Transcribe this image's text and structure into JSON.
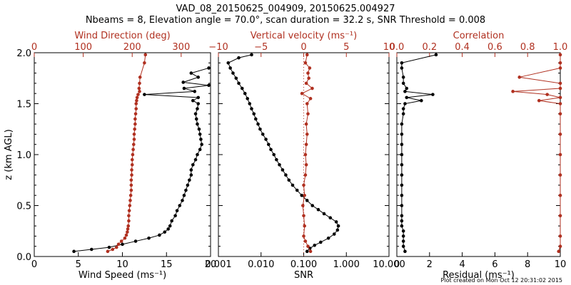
{
  "title_line1": "VAD_08_20150625_004909, 20150625.004927",
  "title_line2": "Nbeams = 8, Elevation angle = 70.0°, scan duration = 32.2 s, SNR Threshold = 0.008",
  "footer": "Plot created on Mon Oct 12 20:31:02 2015",
  "colors": {
    "black": "#000000",
    "red": "#b03020"
  },
  "chart_data": [
    {
      "type": "line",
      "ylabel": "z (km AGL)",
      "ylim": [
        0,
        2.0
      ],
      "yticks": [
        "0.0",
        "0.5",
        "1.0",
        "1.5",
        "2.0"
      ],
      "bottom_axis": {
        "label": "Wind Speed (ms⁻¹)",
        "range": [
          0,
          20
        ],
        "ticks": [
          "0",
          "5",
          "10",
          "15",
          "20"
        ]
      },
      "top_axis": {
        "label": "Wind Direction (deg)",
        "range": [
          0,
          360
        ],
        "ticks": [
          "0",
          "100",
          "200",
          "300"
        ]
      },
      "series": [
        {
          "axis": "bottom",
          "color": "#000000",
          "y": [
            0.05,
            0.07,
            0.09,
            0.12,
            0.15,
            0.18,
            0.21,
            0.24,
            0.27,
            0.3,
            0.35,
            0.4,
            0.45,
            0.5,
            0.55,
            0.6,
            0.65,
            0.7,
            0.75,
            0.8,
            0.85,
            0.9,
            0.95,
            1.0,
            1.05,
            1.1,
            1.15,
            1.2,
            1.25,
            1.3,
            1.35,
            1.4,
            1.45,
            1.5,
            1.53,
            1.56,
            1.59,
            1.62,
            1.65,
            1.68,
            1.71,
            1.76,
            1.8,
            1.85
          ],
          "x": [
            4.5,
            6.5,
            8.5,
            10.0,
            11.5,
            13.0,
            14.2,
            14.8,
            15.2,
            15.4,
            15.6,
            16.0,
            16.2,
            16.5,
            16.8,
            17.0,
            17.2,
            17.4,
            17.6,
            17.8,
            17.8,
            18.0,
            18.3,
            18.5,
            18.8,
            19.0,
            18.9,
            18.8,
            18.7,
            18.5,
            18.4,
            18.3,
            18.5,
            18.6,
            18.0,
            18.6,
            12.5,
            18.2,
            17.0,
            19.8,
            16.9,
            18.6,
            17.8,
            19.8
          ]
        },
        {
          "axis": "top",
          "color": "#b03020",
          "y": [
            0.05,
            0.07,
            0.09,
            0.12,
            0.15,
            0.18,
            0.21,
            0.24,
            0.27,
            0.3,
            0.35,
            0.4,
            0.45,
            0.5,
            0.55,
            0.6,
            0.65,
            0.7,
            0.75,
            0.8,
            0.85,
            0.9,
            0.95,
            1.0,
            1.05,
            1.1,
            1.15,
            1.2,
            1.25,
            1.3,
            1.35,
            1.4,
            1.45,
            1.5,
            1.53,
            1.56,
            1.59,
            1.62,
            1.65,
            1.7,
            1.76,
            1.9,
            1.98
          ],
          "x": [
            150,
            160,
            168,
            172,
            178,
            185,
            188,
            190,
            191,
            192,
            193,
            193,
            194,
            195,
            196,
            197,
            198,
            198,
            198,
            199,
            199,
            200,
            200,
            201,
            202,
            203,
            204,
            204,
            205,
            206,
            206,
            207,
            208,
            208,
            209,
            210,
            212,
            215,
            214,
            215,
            216,
            225,
            227
          ]
        }
      ]
    },
    {
      "type": "line",
      "xlabel": "SNR",
      "ylim": [
        0,
        2.0
      ],
      "bottom_axis": {
        "label": "SNR",
        "scale": "log",
        "range": [
          0.001,
          10
        ],
        "ticks": [
          "0.001",
          "0.010",
          "0.100",
          "1.000",
          "10.000"
        ]
      },
      "top_axis": {
        "label": "Vertical velocity (ms⁻¹)",
        "range": [
          -10,
          10
        ],
        "ticks": [
          "−10",
          "−5",
          "0",
          "5",
          "10"
        ]
      },
      "series": [
        {
          "axis": "bottom",
          "color": "#000000",
          "y": [
            0.05,
            0.08,
            0.11,
            0.14,
            0.18,
            0.22,
            0.26,
            0.3,
            0.34,
            0.38,
            0.42,
            0.46,
            0.5,
            0.55,
            0.6,
            0.65,
            0.7,
            0.75,
            0.8,
            0.85,
            0.9,
            0.95,
            1.0,
            1.05,
            1.1,
            1.15,
            1.2,
            1.25,
            1.3,
            1.35,
            1.4,
            1.45,
            1.5,
            1.55,
            1.6,
            1.65,
            1.7,
            1.75,
            1.8,
            1.85,
            1.9,
            1.95,
            1.98
          ],
          "x": [
            0.12,
            0.14,
            0.18,
            0.25,
            0.38,
            0.52,
            0.62,
            0.65,
            0.58,
            0.42,
            0.3,
            0.22,
            0.16,
            0.12,
            0.09,
            0.07,
            0.055,
            0.045,
            0.038,
            0.032,
            0.027,
            0.023,
            0.02,
            0.017,
            0.015,
            0.013,
            0.011,
            0.0095,
            0.0085,
            0.0075,
            0.0068,
            0.006,
            0.0054,
            0.0048,
            0.0042,
            0.0036,
            0.003,
            0.0026,
            0.0022,
            0.0019,
            0.0017,
            0.003,
            0.006
          ]
        },
        {
          "axis": "top",
          "color": "#b03020",
          "y": [
            0.05,
            0.1,
            0.15,
            0.2,
            0.3,
            0.4,
            0.5,
            0.6,
            0.7,
            0.8,
            0.9,
            1.0,
            1.1,
            1.2,
            1.3,
            1.4,
            1.5,
            1.55,
            1.6,
            1.65,
            1.7,
            1.75,
            1.8,
            1.85,
            1.9,
            1.98
          ],
          "x": [
            0.8,
            0.5,
            0.2,
            0.0,
            0.1,
            0.0,
            -0.1,
            0.1,
            0.0,
            0.2,
            0.3,
            0.2,
            0.3,
            0.4,
            0.3,
            0.5,
            0.4,
            0.8,
            -0.2,
            1.0,
            0.3,
            0.6,
            0.5,
            0.7,
            0.2,
            0.4
          ]
        }
      ]
    },
    {
      "type": "line",
      "ylim": [
        0,
        2.0
      ],
      "bottom_axis": {
        "label": "Residual (ms⁻¹)",
        "range": [
          0,
          10
        ],
        "ticks": [
          "0",
          "2",
          "4",
          "6",
          "8",
          "10"
        ]
      },
      "top_axis": {
        "label": "Correlation",
        "range": [
          0,
          1.0
        ],
        "ticks": [
          "0.0",
          "0.2",
          "0.4",
          "0.6",
          "0.8",
          "1.0"
        ]
      },
      "series": [
        {
          "axis": "bottom",
          "color": "#000000",
          "y": [
            0.05,
            0.1,
            0.15,
            0.2,
            0.25,
            0.3,
            0.35,
            0.4,
            0.5,
            0.6,
            0.7,
            0.8,
            0.9,
            1.0,
            1.1,
            1.2,
            1.3,
            1.4,
            1.45,
            1.5,
            1.53,
            1.56,
            1.59,
            1.62,
            1.65,
            1.7,
            1.76,
            1.85,
            1.9,
            1.98
          ],
          "x": [
            0.5,
            0.4,
            0.4,
            0.4,
            0.4,
            0.3,
            0.3,
            0.3,
            0.3,
            0.3,
            0.3,
            0.3,
            0.3,
            0.3,
            0.3,
            0.3,
            0.3,
            0.4,
            0.4,
            0.5,
            1.5,
            0.6,
            2.2,
            0.5,
            0.6,
            0.4,
            0.4,
            0.3,
            0.3,
            2.4
          ]
        },
        {
          "axis": "top",
          "color": "#b03020",
          "y": [
            0.05,
            0.1,
            0.2,
            0.4,
            0.6,
            0.8,
            1.0,
            1.2,
            1.4,
            1.5,
            1.53,
            1.56,
            1.59,
            1.62,
            1.65,
            1.7,
            1.76,
            1.85,
            1.9,
            1.98
          ],
          "x": [
            0.99,
            1.0,
            1.0,
            1.0,
            1.0,
            1.0,
            1.0,
            1.0,
            1.0,
            1.0,
            0.87,
            1.0,
            0.92,
            0.71,
            1.0,
            1.0,
            0.75,
            1.0,
            1.0,
            1.0
          ]
        }
      ]
    }
  ]
}
